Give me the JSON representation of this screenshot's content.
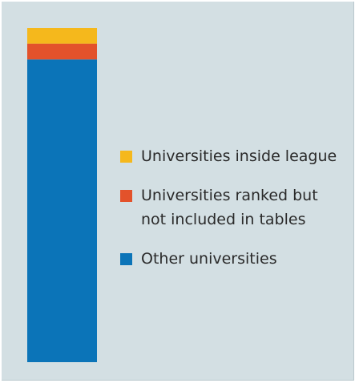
{
  "chart_data": {
    "type": "bar",
    "stacked": true,
    "series": [
      {
        "name": "Other universities",
        "value": 90.6,
        "color": "#0b74b8"
      },
      {
        "name": "Universities ranked but not included in tables",
        "value": 4.7,
        "color": "#e3522b"
      },
      {
        "name": "Universities inside league",
        "value": 4.7,
        "color": "#f5b81c"
      }
    ],
    "ylim": [
      0,
      100
    ],
    "grid": false,
    "legend_position": "right"
  },
  "legend": {
    "items": [
      {
        "label": "Universities inside league",
        "color": "#f5b81c"
      },
      {
        "label": "Universities ranked but\nnot included in tables",
        "color": "#e3522b"
      },
      {
        "label": "Other universities",
        "color": "#0b74b8"
      }
    ]
  },
  "colors": {
    "background": "#d3dfe3"
  }
}
